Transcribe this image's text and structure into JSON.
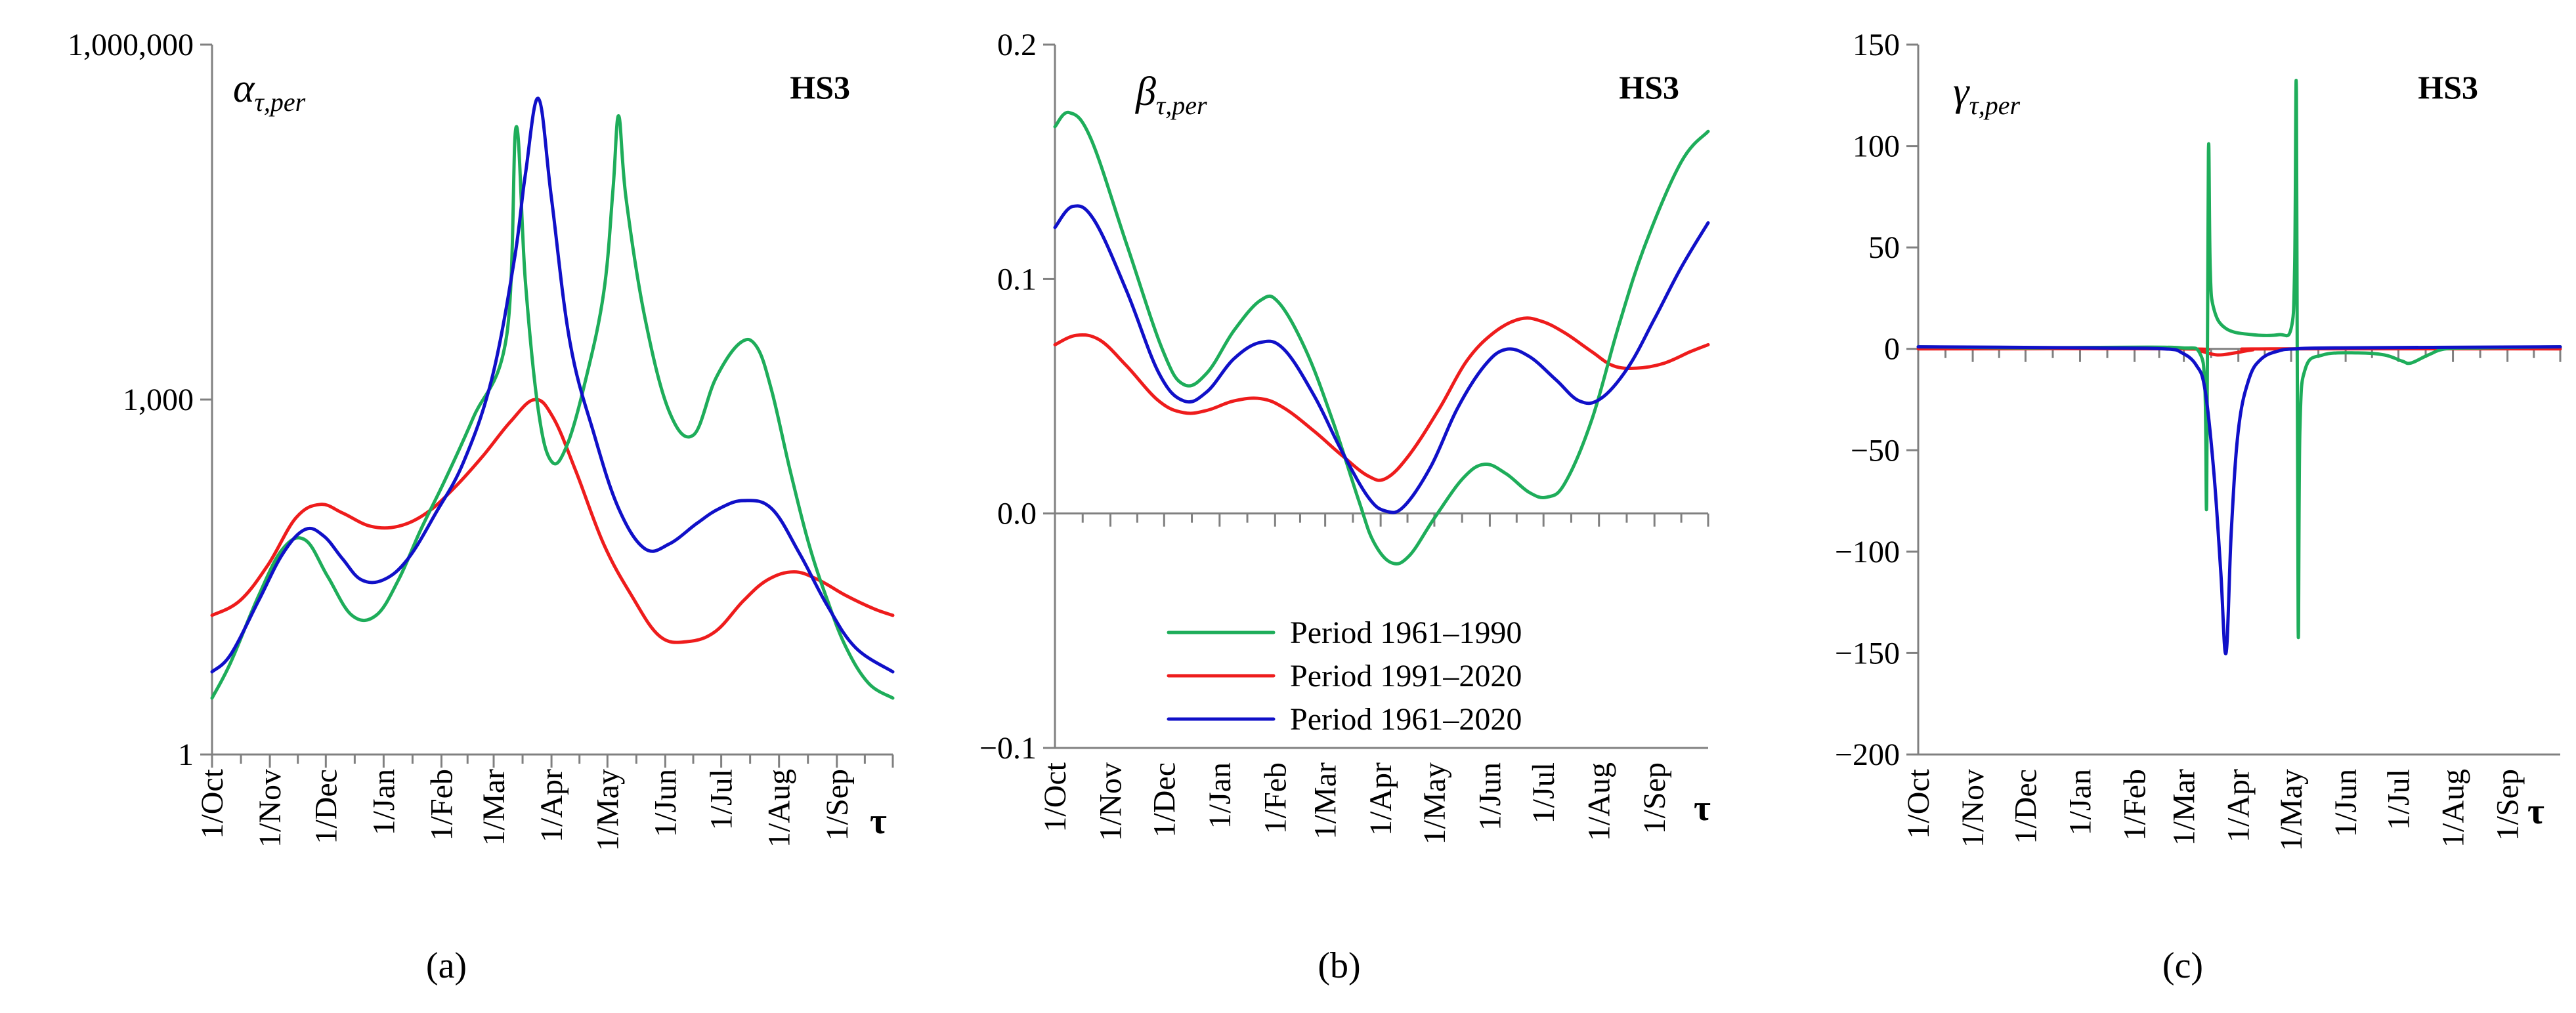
{
  "colors": {
    "p1961_1990": "#1ead5a",
    "p1991_2020": "#ee1c1c",
    "p1961_2020": "#1010c8"
  },
  "chart_data": [
    {
      "type": "line",
      "panel_label": "(a)",
      "variable_symbol": "α",
      "variable_subscript": "τ,per",
      "tag": "HS3",
      "xlabel": "τ",
      "y_scale": "log",
      "ylim": [
        1,
        1000000
      ],
      "y_ticks": [
        1,
        1000,
        1000000
      ],
      "y_tick_labels": [
        "1",
        "1,000",
        "1,000,000"
      ],
      "x_tick_labels": [
        "1/Oct",
        "1/Nov",
        "1/Dec",
        "1/Jan",
        "1/Feb",
        "1/Mar",
        "1/Apr",
        "1/May",
        "1/Jun",
        "1/Jul",
        "1/Aug",
        "1/Sep"
      ],
      "series": [
        {
          "name": "Period 1961–1990",
          "color_key": "p1961_1990",
          "points": [
            [
              0,
              3
            ],
            [
              10,
              6
            ],
            [
              25,
              22
            ],
            [
              38,
              55
            ],
            [
              50,
              65
            ],
            [
              62,
              32
            ],
            [
              75,
              15
            ],
            [
              88,
              15
            ],
            [
              100,
              30
            ],
            [
              112,
              80
            ],
            [
              125,
              210
            ],
            [
              140,
              700
            ],
            [
              158,
              3500
            ],
            [
              163,
              200000
            ],
            [
              168,
              10000
            ],
            [
              175,
              800
            ],
            [
              182,
              300
            ],
            [
              190,
              400
            ],
            [
              200,
              1400
            ],
            [
              210,
              8000
            ],
            [
              215,
              60000
            ],
            [
              218,
              250000
            ],
            [
              222,
              50000
            ],
            [
              232,
              5000
            ],
            [
              245,
              800
            ],
            [
              258,
              500
            ],
            [
              270,
              1500
            ],
            [
              283,
              3000
            ],
            [
              292,
              2800
            ],
            [
              300,
              1200
            ],
            [
              310,
              250
            ],
            [
              320,
              60
            ],
            [
              330,
              20
            ],
            [
              340,
              8
            ],
            [
              352,
              4
            ],
            [
              365,
              3
            ]
          ]
        },
        {
          "name": "Period 1991–2020",
          "color_key": "p1991_2020",
          "points": [
            [
              0,
              15
            ],
            [
              15,
              20
            ],
            [
              30,
              40
            ],
            [
              45,
              100
            ],
            [
              58,
              130
            ],
            [
              70,
              110
            ],
            [
              85,
              85
            ],
            [
              100,
              85
            ],
            [
              115,
              110
            ],
            [
              130,
              180
            ],
            [
              145,
              330
            ],
            [
              160,
              650
            ],
            [
              173,
              1000
            ],
            [
              183,
              700
            ],
            [
              195,
              250
            ],
            [
              210,
              60
            ],
            [
              225,
              22
            ],
            [
              240,
              10
            ],
            [
              255,
              9
            ],
            [
              270,
              11
            ],
            [
              285,
              20
            ],
            [
              298,
              30
            ],
            [
              312,
              35
            ],
            [
              325,
              30
            ],
            [
              340,
              22
            ],
            [
              355,
              17
            ],
            [
              365,
              15
            ]
          ]
        },
        {
          "name": "Period 1961–2020",
          "color_key": "p1961_2020",
          "points": [
            [
              0,
              5
            ],
            [
              10,
              7
            ],
            [
              25,
              20
            ],
            [
              38,
              50
            ],
            [
              50,
              80
            ],
            [
              60,
              70
            ],
            [
              70,
              45
            ],
            [
              80,
              30
            ],
            [
              92,
              30
            ],
            [
              105,
              45
            ],
            [
              120,
              110
            ],
            [
              135,
              300
            ],
            [
              150,
              1500
            ],
            [
              162,
              15000
            ],
            [
              168,
              80000
            ],
            [
              175,
              350000
            ],
            [
              182,
              50000
            ],
            [
              192,
              3000
            ],
            [
              205,
              500
            ],
            [
              218,
              120
            ],
            [
              232,
              55
            ],
            [
              245,
              60
            ],
            [
              260,
              90
            ],
            [
              272,
              120
            ],
            [
              285,
              140
            ],
            [
              300,
              120
            ],
            [
              315,
              50
            ],
            [
              330,
              18
            ],
            [
              345,
              8
            ],
            [
              365,
              5
            ]
          ]
        }
      ]
    },
    {
      "type": "line",
      "panel_label": "(b)",
      "variable_symbol": "β",
      "variable_subscript": "τ,per",
      "tag": "HS3",
      "xlabel": "τ",
      "ylim": [
        -0.1,
        0.2
      ],
      "y_ticks": [
        -0.1,
        0.0,
        0.1,
        0.2
      ],
      "y_tick_labels": [
        "−0.1",
        "0.0",
        "0.1",
        "0.2"
      ],
      "x_tick_labels": [
        "1/Oct",
        "1/Nov",
        "1/Dec",
        "1/Jan",
        "1/Feb",
        "1/Mar",
        "1/Apr",
        "1/May",
        "1/Jun",
        "1/Jul",
        "1/Aug",
        "1/Sep"
      ],
      "legend": {
        "placement": "bottom-center",
        "entries": [
          "Period 1961–1990",
          "Period 1991–2020",
          "Period 1961–2020"
        ]
      },
      "series": [
        {
          "name": "Period 1961–1990",
          "color_key": "p1961_1990",
          "points": [
            [
              0,
              0.165
            ],
            [
              8,
              0.171
            ],
            [
              20,
              0.16
            ],
            [
              40,
              0.115
            ],
            [
              60,
              0.07
            ],
            [
              72,
              0.055
            ],
            [
              85,
              0.06
            ],
            [
              100,
              0.078
            ],
            [
              115,
              0.091
            ],
            [
              125,
              0.09
            ],
            [
              140,
              0.07
            ],
            [
              155,
              0.04
            ],
            [
              170,
              0.005
            ],
            [
              178,
              -0.012
            ],
            [
              188,
              -0.021
            ],
            [
              198,
              -0.018
            ],
            [
              212,
              -0.002
            ],
            [
              228,
              0.015
            ],
            [
              240,
              0.021
            ],
            [
              252,
              0.017
            ],
            [
              265,
              0.009
            ],
            [
              275,
              0.007
            ],
            [
              285,
              0.013
            ],
            [
              300,
              0.04
            ],
            [
              315,
              0.08
            ],
            [
              330,
              0.115
            ],
            [
              350,
              0.15
            ],
            [
              365,
              0.163
            ]
          ]
        },
        {
          "name": "Period 1991–2020",
          "color_key": "p1991_2020",
          "points": [
            [
              0,
              0.072
            ],
            [
              12,
              0.076
            ],
            [
              25,
              0.074
            ],
            [
              40,
              0.063
            ],
            [
              58,
              0.048
            ],
            [
              72,
              0.043
            ],
            [
              85,
              0.044
            ],
            [
              100,
              0.048
            ],
            [
              115,
              0.049
            ],
            [
              128,
              0.045
            ],
            [
              145,
              0.035
            ],
            [
              160,
              0.025
            ],
            [
              175,
              0.016
            ],
            [
              185,
              0.015
            ],
            [
              198,
              0.025
            ],
            [
              215,
              0.045
            ],
            [
              230,
              0.065
            ],
            [
              245,
              0.077
            ],
            [
              260,
              0.083
            ],
            [
              272,
              0.082
            ],
            [
              285,
              0.077
            ],
            [
              300,
              0.069
            ],
            [
              312,
              0.063
            ],
            [
              325,
              0.062
            ],
            [
              340,
              0.064
            ],
            [
              355,
              0.069
            ],
            [
              365,
              0.072
            ]
          ]
        },
        {
          "name": "Period 1961–2020",
          "color_key": "p1961_2020",
          "points": [
            [
              0,
              0.122
            ],
            [
              10,
              0.131
            ],
            [
              22,
              0.125
            ],
            [
              40,
              0.095
            ],
            [
              58,
              0.06
            ],
            [
              72,
              0.048
            ],
            [
              85,
              0.052
            ],
            [
              100,
              0.066
            ],
            [
              115,
              0.073
            ],
            [
              128,
              0.07
            ],
            [
              145,
              0.05
            ],
            [
              160,
              0.027
            ],
            [
              175,
              0.007
            ],
            [
              185,
              0.001
            ],
            [
              195,
              0.003
            ],
            [
              210,
              0.02
            ],
            [
              225,
              0.045
            ],
            [
              240,
              0.063
            ],
            [
              252,
              0.07
            ],
            [
              265,
              0.067
            ],
            [
              280,
              0.057
            ],
            [
              293,
              0.048
            ],
            [
              305,
              0.049
            ],
            [
              320,
              0.062
            ],
            [
              335,
              0.083
            ],
            [
              350,
              0.105
            ],
            [
              365,
              0.124
            ]
          ]
        }
      ]
    },
    {
      "type": "line",
      "panel_label": "(c)",
      "variable_symbol": "γ",
      "variable_subscript": "τ,per",
      "tag": "HS3",
      "xlabel": "τ",
      "ylim": [
        -200,
        150
      ],
      "y_ticks": [
        -200,
        -150,
        -100,
        -50,
        0,
        50,
        100,
        150
      ],
      "y_tick_labels": [
        "−200",
        "−150",
        "−100",
        "−50",
        "0",
        "50",
        "100",
        "150"
      ],
      "x_tick_labels": [
        "1/Oct",
        "1/Nov",
        "1/Dec",
        "1/Jan",
        "1/Feb",
        "1/Mar",
        "1/Apr",
        "1/May",
        "1/Jun",
        "1/Jul",
        "1/Aug",
        "1/Sep"
      ],
      "series": [
        {
          "name": "Period 1961–1990",
          "color_key": "p1961_1990",
          "points": [
            [
              0,
              1
            ],
            [
              60,
              0.5
            ],
            [
              120,
              0.8
            ],
            [
              150,
              0.5
            ],
            [
              160,
              -2
            ],
            [
              163,
              -20
            ],
            [
              164,
              -75
            ],
            [
              165,
              97
            ],
            [
              166,
              40
            ],
            [
              168,
              20
            ],
            [
              175,
              10
            ],
            [
              190,
              7
            ],
            [
              205,
              7
            ],
            [
              212,
              10
            ],
            [
              214,
              40
            ],
            [
              215,
              126
            ],
            [
              216,
              -137
            ],
            [
              217,
              -40
            ],
            [
              220,
              -10
            ],
            [
              230,
              -3
            ],
            [
              250,
              -2
            ],
            [
              265,
              -3
            ],
            [
              275,
              -6
            ],
            [
              280,
              -7
            ],
            [
              290,
              -3
            ],
            [
              300,
              0
            ],
            [
              320,
              0.5
            ],
            [
              365,
              1
            ]
          ]
        },
        {
          "name": "Period 1991–2020",
          "color_key": "p1991_2020",
          "points": [
            [
              0,
              0
            ],
            [
              150,
              0
            ],
            [
              160,
              -1
            ],
            [
              170,
              -3
            ],
            [
              180,
              -2
            ],
            [
              190,
              -0.5
            ],
            [
              200,
              0
            ],
            [
              365,
              0
            ]
          ]
        },
        {
          "name": "Period 1961–2020",
          "color_key": "p1961_2020",
          "points": [
            [
              0,
              1
            ],
            [
              100,
              0.5
            ],
            [
              140,
              0
            ],
            [
              150,
              -2
            ],
            [
              158,
              -8
            ],
            [
              163,
              -20
            ],
            [
              168,
              -60
            ],
            [
              172,
              -110
            ],
            [
              175,
              -150
            ],
            [
              178,
              -90
            ],
            [
              182,
              -40
            ],
            [
              188,
              -15
            ],
            [
              195,
              -5
            ],
            [
              205,
              -1
            ],
            [
              215,
              0
            ],
            [
              240,
              0.5
            ],
            [
              365,
              1
            ]
          ]
        }
      ]
    }
  ]
}
